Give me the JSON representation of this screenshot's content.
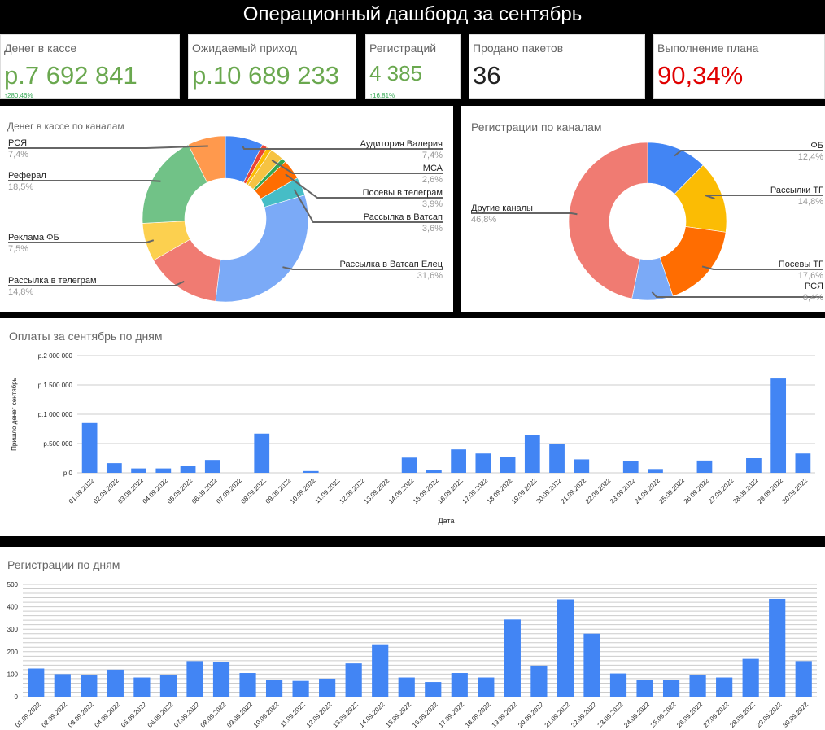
{
  "title": "Операционный дашборд за сентябрь",
  "kpis": [
    {
      "label": "Денег в кассе",
      "value": "р.7 692 841",
      "delta": "280,46%",
      "color": "#6aa84f"
    },
    {
      "label": "Ожидаемый приход",
      "value": "р.10 689 233",
      "delta": "",
      "color": "#6aa84f"
    },
    {
      "label": "Регистраций",
      "value": "4 385",
      "delta": "16,81%",
      "color": "#6aa84f"
    },
    {
      "label": "Продано пакетов",
      "value": "36",
      "delta": "",
      "color": "#222222"
    },
    {
      "label": "Выполнение плана",
      "value": "90,34%",
      "delta": "",
      "color": "#e00000"
    }
  ],
  "chart_data": [
    {
      "type": "pie",
      "title": "Денег в кассе по каналам",
      "donut": true,
      "slices": [
        {
          "name": "Аудитория Валерия",
          "value": 7.4,
          "label": "7,4%",
          "color": "#4285f4"
        },
        {
          "name": "",
          "value": 1.0,
          "label": "",
          "color": "#ea4335"
        },
        {
          "name": "",
          "value": 1.0,
          "label": "",
          "color": "#fbbc04"
        },
        {
          "name": "МСА",
          "value": 2.6,
          "label": "2,6%",
          "color": "#f6c342"
        },
        {
          "name": "",
          "value": 0.9,
          "label": "",
          "color": "#34a853"
        },
        {
          "name": "Посевы в телеграм",
          "value": 3.9,
          "label": "3,9%",
          "color": "#ff6d01"
        },
        {
          "name": "Рассылка в Ватсап",
          "value": 3.6,
          "label": "3,6%",
          "color": "#46bdc6"
        },
        {
          "name": "Рассылка в Ватсап Елец",
          "value": 31.6,
          "label": "31,6%",
          "color": "#7baaf7"
        },
        {
          "name": "Рассылка в телеграм",
          "value": 14.8,
          "label": "14,8%",
          "color": "#f07b72"
        },
        {
          "name": "Реклама ФБ",
          "value": 7.5,
          "label": "7,5%",
          "color": "#fcd04f"
        },
        {
          "name": "Реферал",
          "value": 18.5,
          "label": "18,5%",
          "color": "#71c287"
        },
        {
          "name": "РСЯ",
          "value": 7.4,
          "label": "7,4%",
          "color": "#ff994d"
        }
      ]
    },
    {
      "type": "pie",
      "title": "Регистрации по каналам",
      "donut": true,
      "slices": [
        {
          "name": "ФБ",
          "value": 12.4,
          "label": "12,4%",
          "color": "#4285f4"
        },
        {
          "name": "Рассылки ТГ",
          "value": 14.8,
          "label": "14,8%",
          "color": "#fbbc04"
        },
        {
          "name": "Посевы ТГ",
          "value": 17.6,
          "label": "17,6%",
          "color": "#ff6d01"
        },
        {
          "name": "РСЯ",
          "value": 8.4,
          "label": "8,4%",
          "color": "#7baaf7"
        },
        {
          "name": "Другие каналы",
          "value": 46.8,
          "label": "46,8%",
          "color": "#f07b72"
        }
      ]
    },
    {
      "type": "bar",
      "title": "Оплаты за сентябрь по дням",
      "xlabel": "Дата",
      "ylabel": "Пришло денег сентябрь",
      "ylim": [
        0,
        2000000
      ],
      "yticks": [
        "р.0",
        "р.500 000",
        "р.1 000 000",
        "р.1 500 000",
        "р.2 000 000"
      ],
      "color": "#4285f4",
      "categories": [
        "01.09.2022",
        "02.09.2022",
        "03.09.2022",
        "04.09.2022",
        "05.09.2022",
        "06.09.2022",
        "07.09.2022",
        "08.09.2022",
        "09.09.2022",
        "10.09.2022",
        "11.09.2022",
        "12.09.2022",
        "13.09.2022",
        "14.09.2022",
        "15.09.2022",
        "16.09.2022",
        "17.09.2022",
        "18.09.2022",
        "19.09.2022",
        "20.09.2022",
        "21.09.2022",
        "22.09.2022",
        "23.09.2022",
        "24.09.2022",
        "25.09.2022",
        "26.09.2022",
        "27.09.2022",
        "28.09.2022",
        "29.09.2022",
        "30.09.2022"
      ],
      "values": [
        850000,
        165000,
        75000,
        75000,
        125000,
        220000,
        0,
        670000,
        0,
        30000,
        0,
        0,
        0,
        260000,
        55000,
        400000,
        330000,
        270000,
        650000,
        500000,
        230000,
        0,
        200000,
        65000,
        0,
        210000,
        0,
        250000,
        1610000,
        330000
      ]
    },
    {
      "type": "bar",
      "title": "Регистрации по дням",
      "ylim": [
        0,
        500
      ],
      "yticks": [
        "0",
        "100",
        "200",
        "300",
        "400",
        "500"
      ],
      "color": "#4285f4",
      "categories": [
        "01.09.2022",
        "02.09.2022",
        "03.09.2022",
        "04.09.2022",
        "05.09.2022",
        "06.09.2022",
        "07.09.2022",
        "08.09.2022",
        "09.09.2022",
        "10.09.2022",
        "11.09.2022",
        "12.09.2022",
        "13.09.2022",
        "14.09.2022",
        "15.09.2022",
        "16.09.2022",
        "17.09.2022",
        "18.09.2022",
        "19.09.2022",
        "20.09.2022",
        "21.09.2022",
        "22.09.2022",
        "23.09.2022",
        "24.09.2022",
        "25.09.2022",
        "26.09.2022",
        "27.09.2022",
        "28.09.2022",
        "29.09.2022",
        "30.09.2022"
      ],
      "values": [
        125,
        100,
        95,
        120,
        85,
        95,
        158,
        155,
        105,
        75,
        70,
        80,
        148,
        233,
        85,
        65,
        105,
        85,
        343,
        138,
        433,
        280,
        103,
        75,
        75,
        97,
        85,
        168,
        435,
        158
      ]
    }
  ]
}
